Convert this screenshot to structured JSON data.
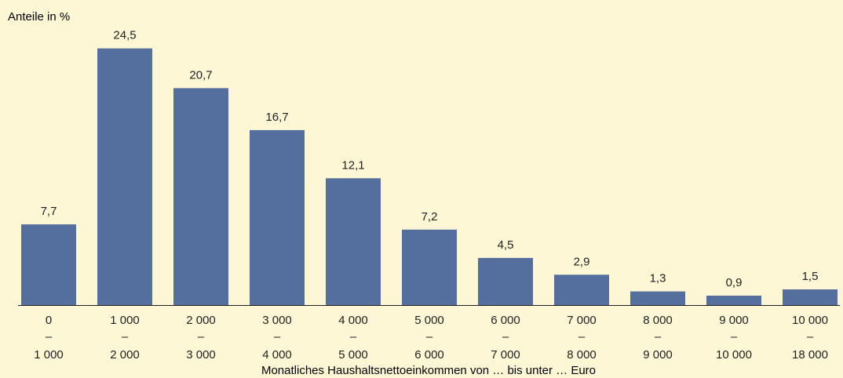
{
  "chart_data": {
    "type": "bar",
    "ylabel": "Anteile in %",
    "xlabel": "Monatliches Haushaltsnettoeinkommen von … bis unter … Euro",
    "categories": [
      {
        "from": "0",
        "sep": "–",
        "to": "1 000"
      },
      {
        "from": "1 000",
        "sep": "–",
        "to": "2 000"
      },
      {
        "from": "2 000",
        "sep": "–",
        "to": "3 000"
      },
      {
        "from": "3 000",
        "sep": "–",
        "to": "4 000"
      },
      {
        "from": "4 000",
        "sep": "–",
        "to": "5 000"
      },
      {
        "from": "5 000",
        "sep": "–",
        "to": "6 000"
      },
      {
        "from": "6 000",
        "sep": "–",
        "to": "7 000"
      },
      {
        "from": "7 000",
        "sep": "–",
        "to": "8 000"
      },
      {
        "from": "8 000",
        "sep": "–",
        "to": "9 000"
      },
      {
        "from": "9 000",
        "sep": "–",
        "to": "10 000"
      },
      {
        "from": "10 000",
        "sep": "–",
        "to": "18 000"
      }
    ],
    "values": [
      7.7,
      24.5,
      20.7,
      16.7,
      12.1,
      7.2,
      4.5,
      2.9,
      1.3,
      0.9,
      1.5
    ],
    "value_labels": [
      "7,7",
      "24,5",
      "20,7",
      "16,7",
      "12,1",
      "7,2",
      "4,5",
      "2,9",
      "1,3",
      "0,9",
      "1,5"
    ],
    "ylim": [
      0,
      25
    ],
    "grid": false,
    "colors": {
      "background": "#fdf7d6",
      "bar": "#546e9d",
      "axis": "#1f1f1f",
      "text": "#1f1f1f"
    }
  }
}
